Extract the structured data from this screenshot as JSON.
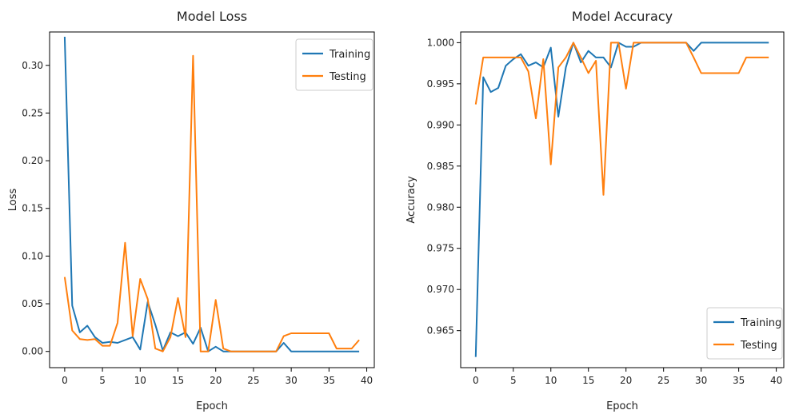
{
  "chart_data": [
    {
      "type": "line",
      "title": "Model Loss",
      "xlabel": "Epoch",
      "ylabel": "Loss",
      "xlim": [
        -2,
        41
      ],
      "ylim": [
        -0.017,
        0.335
      ],
      "xticks": [
        0,
        5,
        10,
        15,
        20,
        25,
        30,
        35,
        40
      ],
      "xtick_labels": [
        "0",
        "5",
        "10",
        "15",
        "20",
        "25",
        "30",
        "35",
        "40"
      ],
      "yticks": [
        0.0,
        0.05,
        0.1,
        0.15,
        0.2,
        0.25,
        0.3
      ],
      "ytick_labels": [
        "0.00",
        "0.05",
        "0.10",
        "0.15",
        "0.20",
        "0.25",
        "0.30"
      ],
      "legend_position": "top-right",
      "grid": false,
      "x": [
        0,
        1,
        2,
        3,
        4,
        5,
        6,
        7,
        8,
        9,
        10,
        11,
        12,
        13,
        14,
        15,
        16,
        17,
        18,
        19,
        20,
        21,
        22,
        23,
        24,
        25,
        26,
        27,
        28,
        29,
        30,
        31,
        32,
        33,
        34,
        35,
        36,
        37,
        38,
        39
      ],
      "series": [
        {
          "name": "Training",
          "color": "#1f77b4",
          "values": [
            0.33,
            0.048,
            0.02,
            0.027,
            0.015,
            0.009,
            0.01,
            0.009,
            0.012,
            0.015,
            0.002,
            0.052,
            0.028,
            0.001,
            0.02,
            0.016,
            0.02,
            0.008,
            0.025,
            0.0,
            0.005,
            0.0,
            0.0,
            0.0,
            0.0,
            0.0,
            0.0,
            0.0,
            0.0,
            0.009,
            0.0,
            0.0,
            0.0,
            0.0,
            0.0,
            0.0,
            0.0,
            0.0,
            0.0,
            0.0
          ]
        },
        {
          "name": "Testing",
          "color": "#ff7f0e",
          "values": [
            0.078,
            0.022,
            0.013,
            0.012,
            0.013,
            0.006,
            0.006,
            0.03,
            0.114,
            0.016,
            0.076,
            0.055,
            0.003,
            0.0,
            0.015,
            0.056,
            0.015,
            0.31,
            0.0,
            0.0,
            0.054,
            0.003,
            0.0,
            0.0,
            0.0,
            0.0,
            0.0,
            0.0,
            0.0,
            0.016,
            0.019,
            0.019,
            0.019,
            0.019,
            0.019,
            0.019,
            0.003,
            0.003,
            0.003,
            0.012
          ]
        }
      ]
    },
    {
      "type": "line",
      "title": "Model Accuracy",
      "xlabel": "Epoch",
      "ylabel": "Accuracy",
      "xlim": [
        -2,
        41
      ],
      "ylim": [
        0.9605,
        1.0013
      ],
      "xticks": [
        0,
        5,
        10,
        15,
        20,
        25,
        30,
        35,
        40
      ],
      "xtick_labels": [
        "0",
        "5",
        "10",
        "15",
        "20",
        "25",
        "30",
        "35",
        "40"
      ],
      "yticks": [
        0.965,
        0.97,
        0.975,
        0.98,
        0.985,
        0.99,
        0.995,
        1.0
      ],
      "ytick_labels": [
        "0.965",
        "0.970",
        "0.975",
        "0.980",
        "0.985",
        "0.990",
        "0.995",
        "1.000"
      ],
      "legend_position": "bottom-right",
      "grid": false,
      "x": [
        0,
        1,
        2,
        3,
        4,
        5,
        6,
        7,
        8,
        9,
        10,
        11,
        12,
        13,
        14,
        15,
        16,
        17,
        18,
        19,
        20,
        21,
        22,
        23,
        24,
        25,
        26,
        27,
        28,
        29,
        30,
        31,
        32,
        33,
        34,
        35,
        36,
        37,
        38,
        39
      ],
      "series": [
        {
          "name": "Training",
          "color": "#1f77b4",
          "values": [
            0.9618,
            0.9958,
            0.994,
            0.9945,
            0.9972,
            0.998,
            0.9986,
            0.9972,
            0.9976,
            0.997,
            0.9994,
            0.991,
            0.997,
            1.0,
            0.9976,
            0.999,
            0.9982,
            0.9982,
            0.997,
            1.0,
            0.9995,
            0.9995,
            1.0,
            1.0,
            1.0,
            1.0,
            1.0,
            1.0,
            1.0,
            0.999,
            1.0,
            1.0,
            1.0,
            1.0,
            1.0,
            1.0,
            1.0,
            1.0,
            1.0,
            1.0
          ]
        },
        {
          "name": "Testing",
          "color": "#ff7f0e",
          "values": [
            0.9925,
            0.9982,
            0.9982,
            0.9982,
            0.9982,
            0.9982,
            0.9982,
            0.9965,
            0.9908,
            0.998,
            0.9852,
            0.997,
            0.9982,
            1.0,
            0.9982,
            0.9963,
            0.9978,
            0.9815,
            1.0,
            1.0,
            0.9944,
            1.0,
            1.0,
            1.0,
            1.0,
            1.0,
            1.0,
            1.0,
            1.0,
            0.9982,
            0.9963,
            0.9963,
            0.9963,
            0.9963,
            0.9963,
            0.9963,
            0.9982,
            0.9982,
            0.9982,
            0.9982
          ]
        }
      ]
    }
  ]
}
